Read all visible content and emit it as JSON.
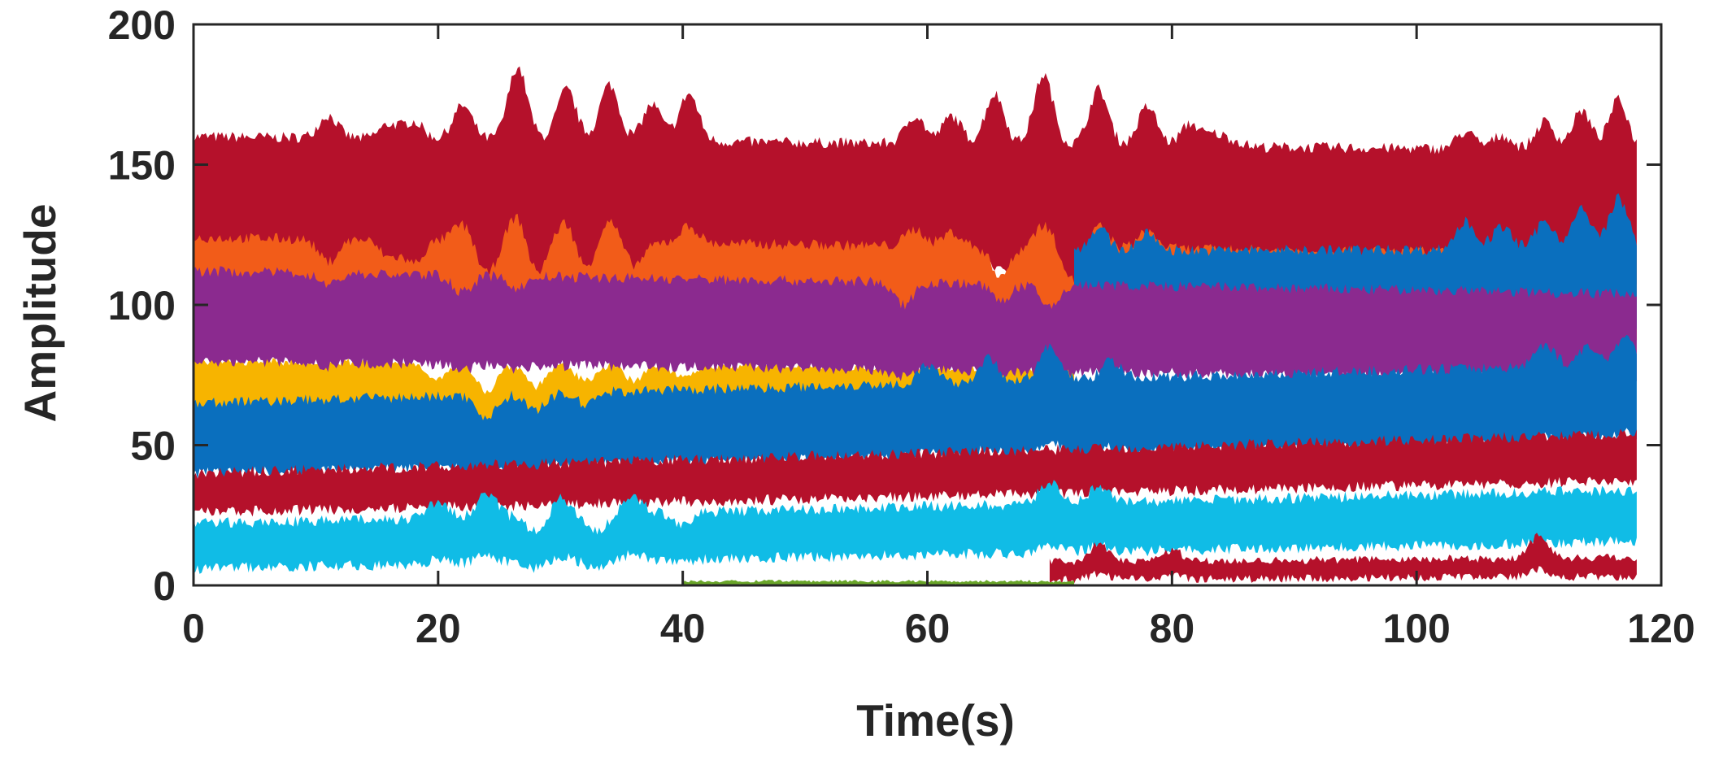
{
  "chart_data": {
    "type": "area",
    "title": "",
    "xlabel": "Time(s)",
    "ylabel": "Amplitude",
    "xlim": [
      0,
      120
    ],
    "ylim": [
      0,
      200
    ],
    "x_ticks": [
      "0",
      "20",
      "40",
      "60",
      "80",
      "100",
      "120"
    ],
    "y_ticks": [
      "0",
      "50",
      "100",
      "150",
      "200"
    ],
    "grid": false,
    "legend": "none",
    "data_end_x": 118,
    "colors": {
      "red": "#b5112b",
      "orange": "#f25c19",
      "yellow": "#f7b400",
      "purple": "#8b2a8f",
      "blue": "#0a6fbe",
      "cyan": "#10bce6",
      "green": "#6aa629",
      "axis": "#262626"
    },
    "bands": [
      {
        "color": "red",
        "low": 110,
        "high": 160,
        "peaks": [
          [
            11,
            8
          ],
          [
            16,
            5
          ],
          [
            18,
            6
          ],
          [
            22,
            12
          ],
          [
            26.5,
            26
          ],
          [
            30.5,
            18
          ],
          [
            34,
            20
          ],
          [
            37.5,
            13
          ],
          [
            40.5,
            17
          ],
          [
            59,
            10
          ],
          [
            62,
            10
          ],
          [
            65.5,
            18
          ],
          [
            69.5,
            25
          ],
          [
            74,
            20
          ],
          [
            78,
            14
          ],
          [
            81.5,
            8
          ],
          [
            83.5,
            4
          ],
          [
            85,
            2
          ],
          [
            104,
            6
          ],
          [
            107,
            5
          ],
          [
            110.5,
            10
          ],
          [
            113.5,
            14
          ],
          [
            116.5,
            18
          ]
        ],
        "trend_end": -5,
        "noise": 2
      },
      {
        "color": "orange",
        "low": 92,
        "high": 124,
        "peaks": [
          [
            11,
            -8
          ],
          [
            16,
            -6
          ],
          [
            18,
            -8
          ],
          [
            22,
            6
          ],
          [
            24,
            -12
          ],
          [
            26.5,
            10
          ],
          [
            28,
            -12
          ],
          [
            30.5,
            8
          ],
          [
            32,
            -10
          ],
          [
            34,
            8
          ],
          [
            36,
            -8
          ],
          [
            40.5,
            6
          ],
          [
            59,
            6
          ],
          [
            62,
            5
          ],
          [
            66,
            -10
          ],
          [
            69.5,
            8
          ],
          [
            72,
            -12
          ],
          [
            74,
            8
          ],
          [
            78,
            6
          ],
          [
            105,
            -8
          ],
          [
            108,
            -10
          ],
          [
            112,
            -12
          ],
          [
            116,
            -14
          ]
        ],
        "trend_end": -6,
        "noise": 2
      },
      {
        "color": "blue",
        "low": 90,
        "high": 118,
        "start": 72,
        "peaks": [
          [
            74,
            8
          ],
          [
            78,
            6
          ],
          [
            104,
            10
          ],
          [
            107,
            8
          ],
          [
            110.5,
            10
          ],
          [
            113.5,
            14
          ],
          [
            116.5,
            18
          ]
        ],
        "trend_end": 2,
        "noise": 2
      },
      {
        "color": "yellow",
        "low": 62,
        "high": 80,
        "peaks": [
          [
            20,
            -6
          ],
          [
            24,
            -10
          ],
          [
            28,
            -8
          ],
          [
            32,
            -6
          ],
          [
            36,
            -6
          ],
          [
            40,
            -4
          ]
        ],
        "trend_end": -4,
        "noise": 1.5,
        "end": 72
      },
      {
        "color": "purple",
        "low": 80,
        "high": 112,
        "peaks": [
          [
            11,
            -4
          ],
          [
            22,
            -6
          ],
          [
            26.5,
            -4
          ],
          [
            58,
            -8
          ],
          [
            66,
            -6
          ],
          [
            70,
            -8
          ]
        ],
        "trend_end": -8,
        "noise": 2
      },
      {
        "color": "blue",
        "low": 40,
        "high": 65,
        "peaks": [
          [
            24,
            -8
          ],
          [
            28,
            -6
          ],
          [
            32,
            -4
          ],
          [
            60,
            6
          ],
          [
            65,
            8
          ],
          [
            70,
            12
          ],
          [
            75,
            6
          ],
          [
            110.5,
            8
          ],
          [
            114,
            6
          ],
          [
            117,
            10
          ]
        ],
        "trend_end": 14,
        "noise": 2
      },
      {
        "color": "red",
        "low": 26,
        "high": 40,
        "peaks": [],
        "trend_end": 14,
        "noise": 2
      },
      {
        "color": "cyan",
        "low": 6,
        "high": 22,
        "peaks": [
          [
            20,
            6
          ],
          [
            24,
            8
          ],
          [
            28,
            -6
          ],
          [
            30,
            6
          ],
          [
            33,
            -6
          ],
          [
            36,
            6
          ],
          [
            40,
            -4
          ],
          [
            70,
            8
          ],
          [
            74,
            6
          ]
        ],
        "trend_end": 12,
        "noise": 2
      },
      {
        "color": "red",
        "low": 0,
        "high": 6,
        "start": 70,
        "peaks": [
          [
            74,
            6
          ],
          [
            80,
            4
          ],
          [
            110,
            8
          ]
        ],
        "trend_end": 4,
        "noise": 1.5
      },
      {
        "color": "green",
        "low": 0,
        "high": 1.5,
        "start": 40,
        "end": 72,
        "peaks": [],
        "trend_end": 0,
        "noise": 0.5
      }
    ]
  }
}
